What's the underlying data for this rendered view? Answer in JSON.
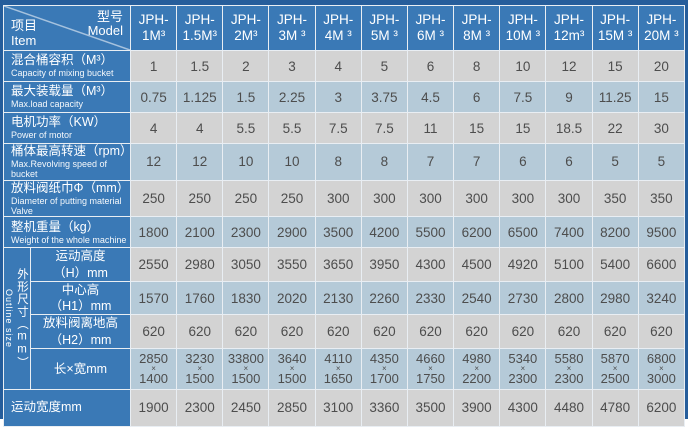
{
  "colors": {
    "outer_border": "#255d9b",
    "header_blue": "#3a79b6",
    "row_gray": "#d3d3d3",
    "row_blue": "#b5cad8",
    "value_text": "#4d4d4d"
  },
  "table": {
    "corner": {
      "cn_top": "型号",
      "en_top": "Model",
      "cn_bottom": "项目",
      "en_bottom": "Item"
    },
    "columns": [
      {
        "l1": "JPH-",
        "l2": "1M³"
      },
      {
        "l1": "JPH-",
        "l2": "1.5M³"
      },
      {
        "l1": "JPH-",
        "l2": "2M³"
      },
      {
        "l1": "JPH-",
        "l2": "3M ³"
      },
      {
        "l1": "JPH-",
        "l2": "4M ³"
      },
      {
        "l1": "JPH-",
        "l2": "5M ³"
      },
      {
        "l1": "JPH-",
        "l2": "6M ³"
      },
      {
        "l1": "JPH-",
        "l2": "8M ³"
      },
      {
        "l1": "JPH-",
        "l2": "10M ³"
      },
      {
        "l1": "JPH-",
        "l2": "12m³"
      },
      {
        "l1": "JPH-",
        "l2": "15M ³"
      },
      {
        "l1": "JPH-",
        "l2": "20M ³"
      }
    ],
    "group_label": {
      "cn": "外形尺寸（mm）",
      "en": "Outline size"
    },
    "rows": [
      {
        "kind": "simple",
        "cn": "混合桶容积（M³）",
        "en": "Capacity of mixing bucket",
        "values": [
          "1",
          "1.5",
          "2",
          "3",
          "4",
          "5",
          "6",
          "8",
          "10",
          "12",
          "15",
          "20"
        ]
      },
      {
        "kind": "simple",
        "cn": "最大装载量（M³）",
        "en": "Max.load capacity",
        "values": [
          "0.75",
          "1.125",
          "1.5",
          "2.25",
          "3",
          "3.75",
          "4.5",
          "6",
          "7.5",
          "9",
          "11.25",
          "15"
        ]
      },
      {
        "kind": "simple",
        "cn": "电机功率（KW）",
        "en": "Power of motor",
        "values": [
          "4",
          "4",
          "5.5",
          "5.5",
          "7.5",
          "7.5",
          "11",
          "15",
          "15",
          "18.5",
          "22",
          "30"
        ]
      },
      {
        "kind": "simple",
        "cn": "桶体最高转速（rpm）",
        "en": "Max.Revolving speed of bucket",
        "values": [
          "12",
          "12",
          "10",
          "10",
          "8",
          "8",
          "7",
          "7",
          "6",
          "6",
          "5",
          "5"
        ]
      },
      {
        "kind": "simple",
        "cn": "放料阀纸巾Φ（mm）",
        "en": "Diameter of putting material Valve",
        "values": [
          "250",
          "250",
          "250",
          "250",
          "300",
          "300",
          "300",
          "300",
          "300",
          "300",
          "350",
          "350"
        ]
      },
      {
        "kind": "simple",
        "cn": "整机重量（kg）",
        "en": "Weight of the whole machine",
        "values": [
          "1800",
          "2100",
          "2300",
          "2900",
          "3500",
          "4200",
          "5500",
          "6200",
          "6500",
          "7400",
          "8200",
          "9500"
        ]
      },
      {
        "kind": "groupstart",
        "cn": "运动高度\n（H）mm",
        "values": [
          "2550",
          "2980",
          "3050",
          "3550",
          "3650",
          "3950",
          "4300",
          "4500",
          "4920",
          "5100",
          "5400",
          "6600"
        ]
      },
      {
        "kind": "sub",
        "cn": "中心高\n（H1）mm",
        "values": [
          "1570",
          "1760",
          "1830",
          "2020",
          "2130",
          "2260",
          "2330",
          "2540",
          "2730",
          "2800",
          "2980",
          "3240"
        ]
      },
      {
        "kind": "sub",
        "cn": "放料阀离地高\n（H2）mm",
        "values": [
          "620",
          "620",
          "620",
          "620",
          "620",
          "620",
          "620",
          "620",
          "620",
          "620",
          "620",
          "620"
        ]
      },
      {
        "kind": "sub",
        "tall": true,
        "cn": "长×宽mm",
        "values": [
          "2850\n×\n1400",
          "3230\n×\n1500",
          "33800\n×\n1500",
          "3640\n×\n1500",
          "4110\n×\n1650",
          "4350\n×\n1700",
          "4660\n×\n1750",
          "4980\n×\n2200",
          "5340\n×\n2300",
          "5580\n×\n2300",
          "5870\n×\n2500",
          "6800\n×\n3000"
        ]
      },
      {
        "kind": "full",
        "last": true,
        "cn": "运动宽度mm",
        "values": [
          "1900",
          "2300",
          "2450",
          "2850",
          "3100",
          "3360",
          "3500",
          "3900",
          "4300",
          "4480",
          "4780",
          "6200"
        ]
      }
    ]
  }
}
